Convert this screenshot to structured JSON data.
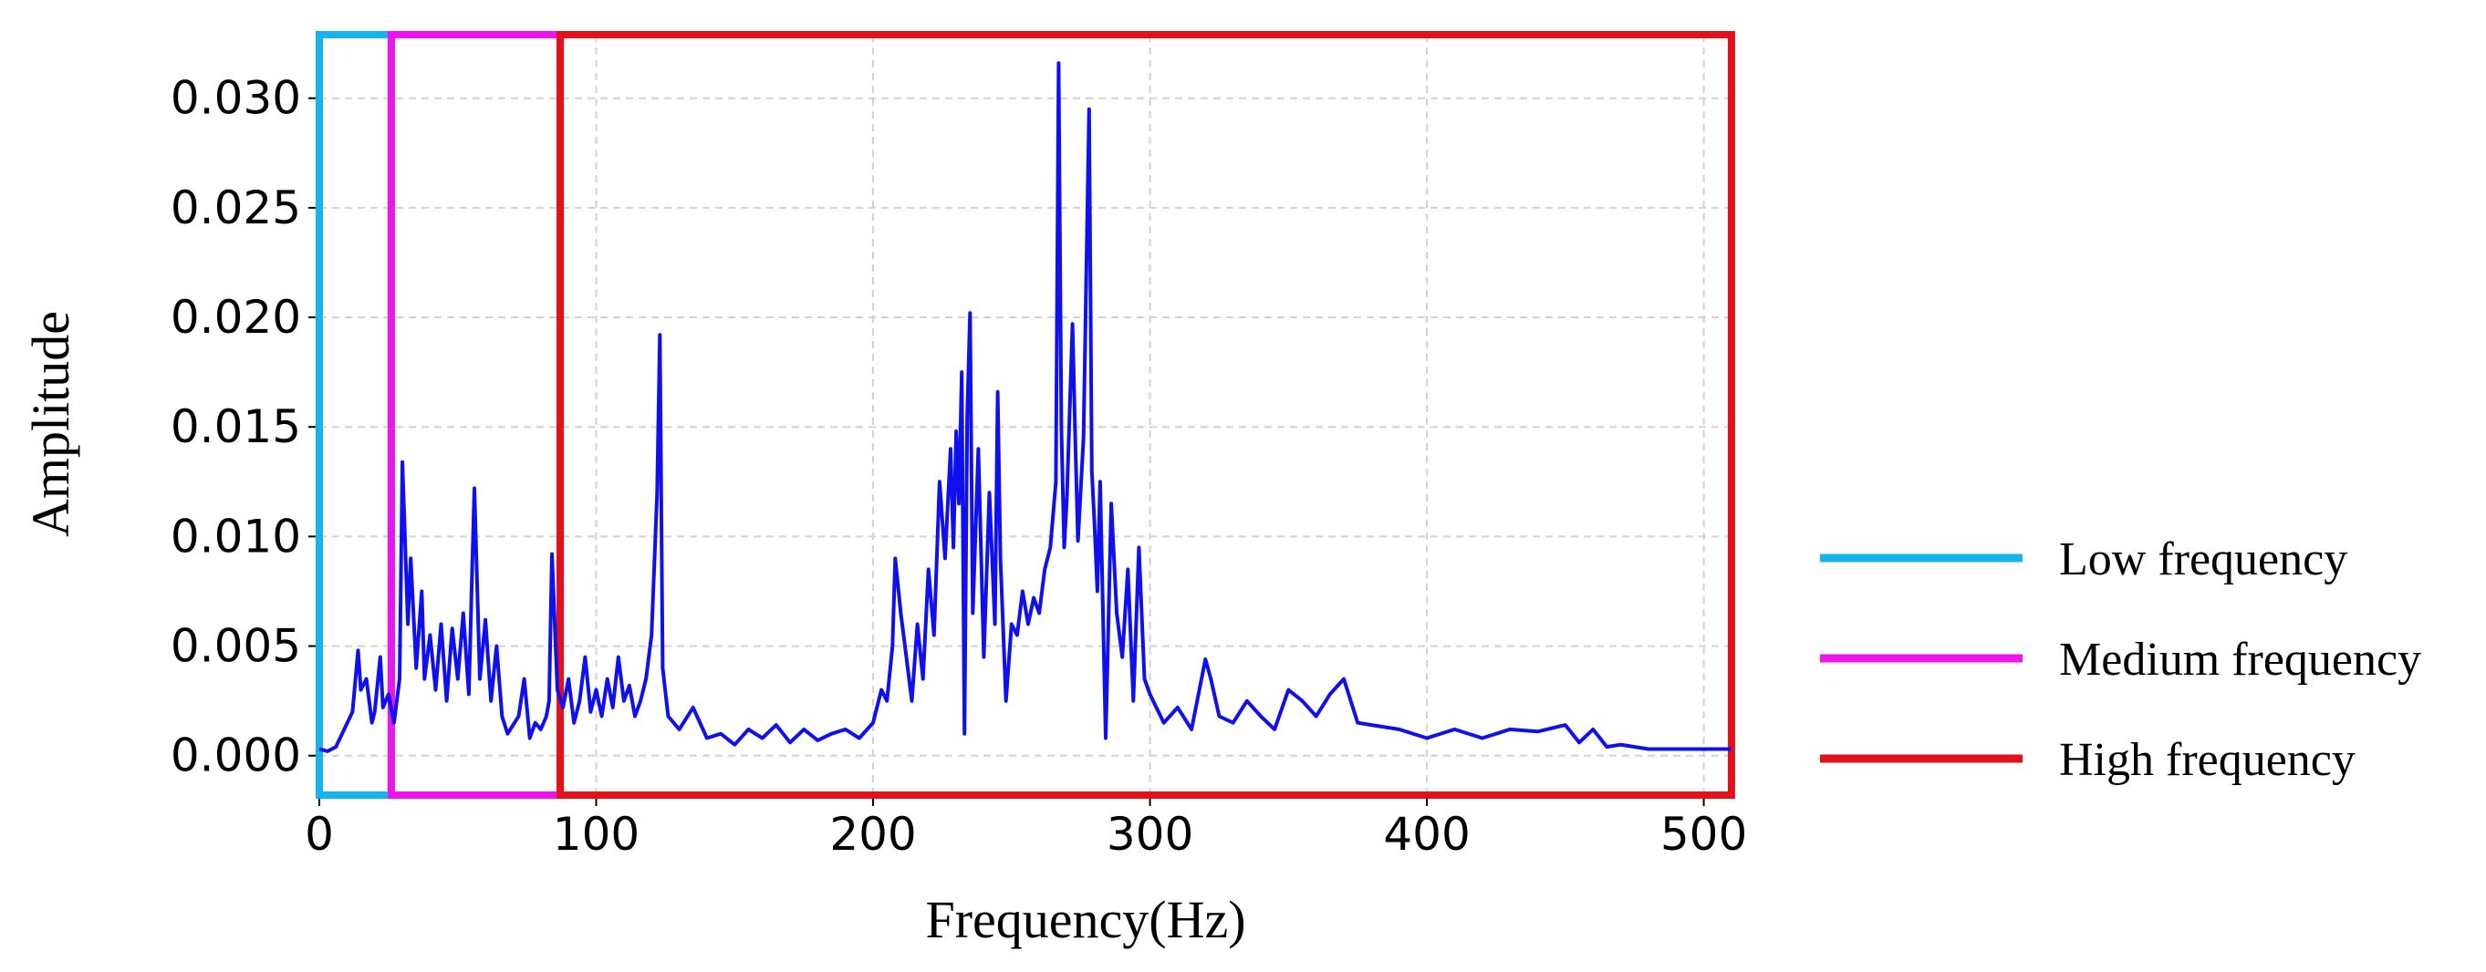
{
  "chart_data": {
    "type": "line",
    "title": "",
    "xlabel": "Frequency(Hz)",
    "ylabel": "Amplitude",
    "xlim": [
      0,
      512
    ],
    "ylim": [
      -0.0018,
      0.0329
    ],
    "grid": true,
    "x_ticks": [
      0,
      100,
      200,
      300,
      400,
      500
    ],
    "x_tick_labels": [
      "0",
      "100",
      "200",
      "300",
      "400",
      "500"
    ],
    "y_ticks": [
      0.0,
      0.005,
      0.01,
      0.015,
      0.02,
      0.025,
      0.03
    ],
    "y_tick_labels": [
      "0.000",
      "0.005",
      "0.010",
      "0.015",
      "0.020",
      "0.025",
      "0.030"
    ],
    "line_color": "#1010ee",
    "legend_position": "right",
    "bands": [
      {
        "name": "Low frequency",
        "x_range": [
          0,
          26
        ],
        "color": "#16b4ea"
      },
      {
        "name": "Medium frequency",
        "x_range": [
          26,
          87
        ],
        "color": "#ee14ee"
      },
      {
        "name": "High frequency",
        "x_range": [
          87,
          510
        ],
        "color": "#e0121b"
      }
    ],
    "series": [
      {
        "x": [
          0,
          3,
          6,
          9,
          12,
          14,
          15,
          17,
          19,
          20,
          22,
          23,
          25,
          27,
          29,
          30,
          32,
          33,
          35,
          37,
          38,
          40,
          42,
          44,
          46,
          48,
          50,
          52,
          54,
          55,
          56,
          58,
          60,
          62,
          64,
          66,
          68,
          70,
          72,
          74,
          76,
          78,
          80,
          82,
          83,
          84,
          86,
          88,
          90,
          92,
          94,
          96,
          98,
          100,
          102,
          104,
          106,
          108,
          110,
          112,
          114,
          116,
          118,
          120,
          122,
          123,
          124,
          126,
          130,
          135,
          140,
          145,
          150,
          155,
          160,
          165,
          170,
          175,
          180,
          185,
          190,
          195,
          200,
          203,
          205,
          207,
          208,
          210,
          212,
          214,
          216,
          218,
          220,
          222,
          224,
          226,
          228,
          229,
          230,
          231,
          232,
          233,
          234,
          235,
          236,
          238,
          240,
          242,
          244,
          245,
          246,
          248,
          250,
          252,
          254,
          256,
          258,
          260,
          262,
          264,
          266,
          267,
          268,
          269,
          270,
          272,
          273,
          274,
          276,
          278,
          279,
          280,
          281,
          282,
          284,
          286,
          288,
          290,
          292,
          294,
          296,
          298,
          300,
          305,
          310,
          315,
          320,
          322,
          325,
          330,
          335,
          340,
          345,
          350,
          355,
          360,
          365,
          370,
          375,
          380,
          390,
          400,
          410,
          420,
          430,
          440,
          450,
          455,
          460,
          465,
          470,
          480,
          490,
          500,
          510
        ],
        "y": [
          0.0003,
          0.0002,
          0.0004,
          0.0012,
          0.002,
          0.0048,
          0.003,
          0.0035,
          0.0015,
          0.002,
          0.0045,
          0.0022,
          0.0028,
          0.0015,
          0.0035,
          0.0134,
          0.006,
          0.009,
          0.004,
          0.0075,
          0.0035,
          0.0055,
          0.003,
          0.006,
          0.0025,
          0.0058,
          0.0035,
          0.0065,
          0.0028,
          0.0075,
          0.0122,
          0.0035,
          0.0062,
          0.0025,
          0.005,
          0.0018,
          0.001,
          0.0014,
          0.0018,
          0.0035,
          0.0008,
          0.0015,
          0.0012,
          0.0018,
          0.0025,
          0.0092,
          0.003,
          0.0022,
          0.0035,
          0.0015,
          0.0025,
          0.0045,
          0.002,
          0.003,
          0.0018,
          0.0035,
          0.0022,
          0.0045,
          0.0025,
          0.0032,
          0.0018,
          0.0025,
          0.0035,
          0.0055,
          0.012,
          0.0192,
          0.004,
          0.0018,
          0.0012,
          0.0022,
          0.0008,
          0.001,
          0.0005,
          0.0012,
          0.0008,
          0.0014,
          0.0006,
          0.0012,
          0.0007,
          0.001,
          0.0012,
          0.0008,
          0.0015,
          0.003,
          0.0025,
          0.005,
          0.009,
          0.0065,
          0.0045,
          0.0025,
          0.006,
          0.0035,
          0.0085,
          0.0055,
          0.0125,
          0.009,
          0.014,
          0.0095,
          0.0148,
          0.0115,
          0.0175,
          0.001,
          0.0155,
          0.0202,
          0.0065,
          0.014,
          0.0045,
          0.012,
          0.006,
          0.0166,
          0.009,
          0.0025,
          0.006,
          0.0055,
          0.0075,
          0.006,
          0.0072,
          0.0065,
          0.0085,
          0.0095,
          0.0125,
          0.0316,
          0.015,
          0.0095,
          0.0118,
          0.0197,
          0.0145,
          0.0098,
          0.0145,
          0.0295,
          0.013,
          0.0105,
          0.0075,
          0.0125,
          0.0008,
          0.0115,
          0.0065,
          0.0045,
          0.0085,
          0.0025,
          0.0095,
          0.0035,
          0.0028,
          0.0015,
          0.0022,
          0.0012,
          0.0044,
          0.0035,
          0.0018,
          0.0015,
          0.0025,
          0.0018,
          0.0012,
          0.003,
          0.0025,
          0.0018,
          0.0028,
          0.0035,
          0.0015,
          0.0014,
          0.0012,
          0.0008,
          0.0012,
          0.0008,
          0.0012,
          0.0011,
          0.0014,
          0.0006,
          0.0012,
          0.0004,
          0.0005,
          0.0003,
          0.0003,
          0.0003,
          0.0003
        ]
      }
    ]
  }
}
